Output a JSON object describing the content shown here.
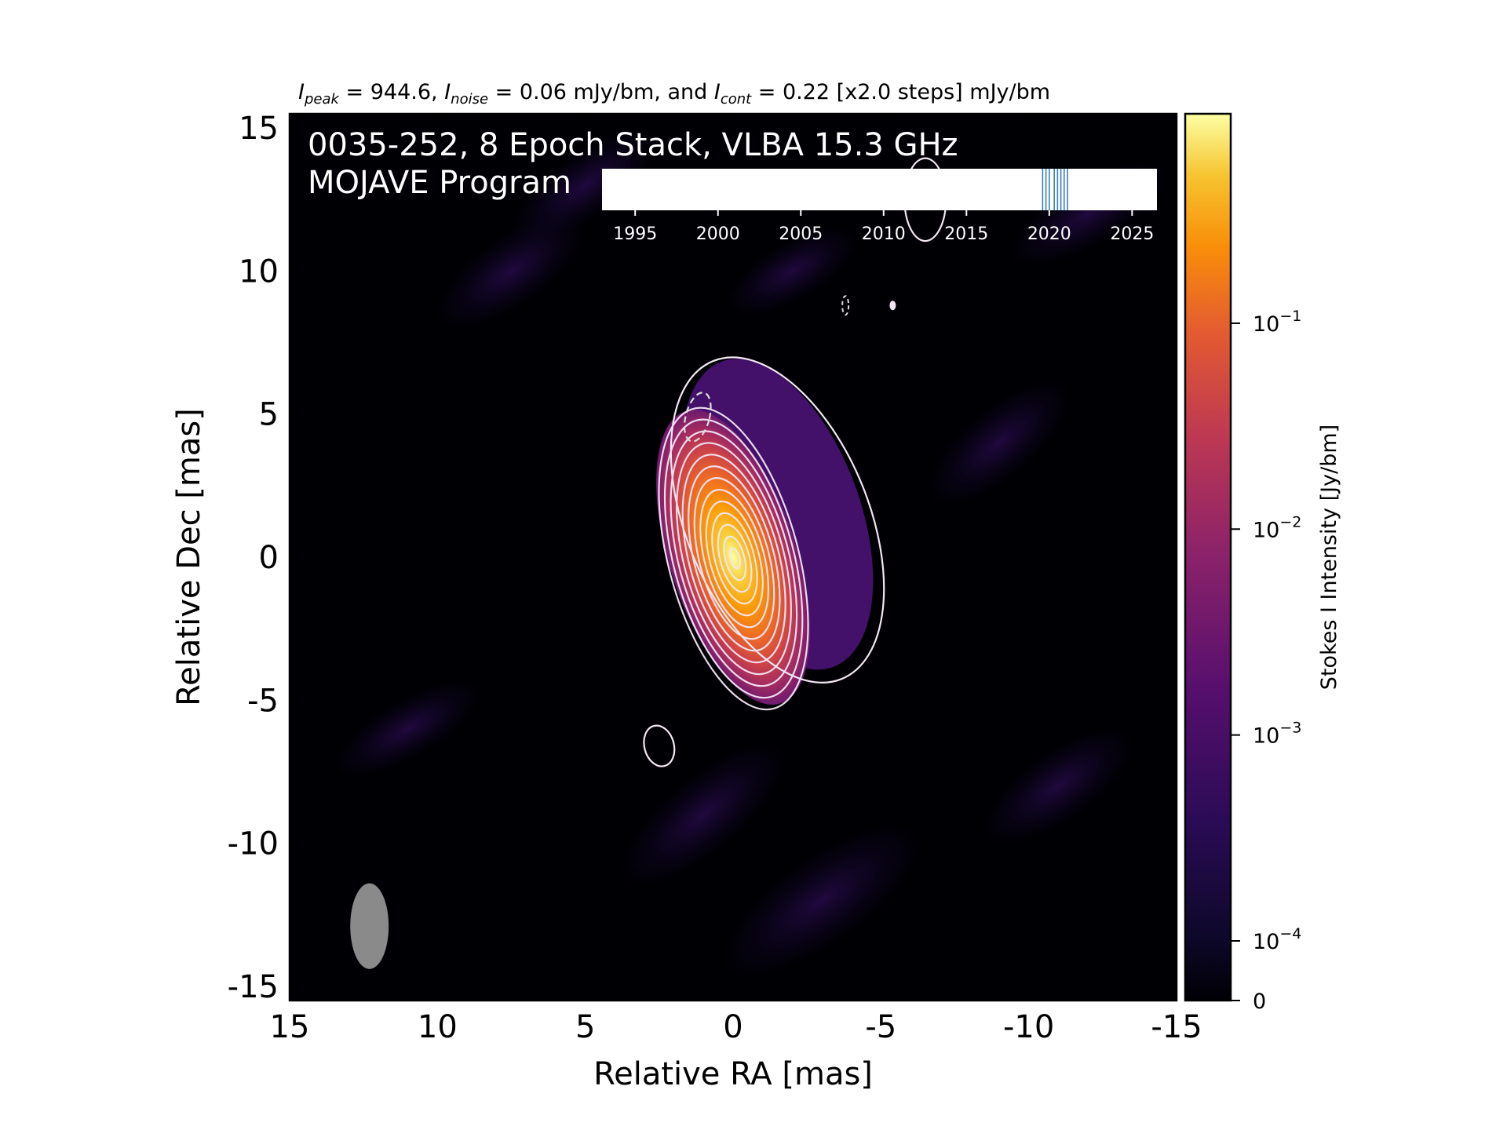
{
  "chart_data": {
    "type": "heatmap",
    "title_parts": {
      "peak_label": "I",
      "peak_sub": "peak",
      "peak_text": " = 944.6, ",
      "noise_label": "I",
      "noise_sub": "noise",
      "noise_text": " = 0.06 mJy/bm, and ",
      "cont_label": "I",
      "cont_sub": "cont",
      "cont_text": " = 0.22 [x2.0 steps] mJy/bm"
    },
    "overlay_line1": "0035-252, 8 Epoch Stack, VLBA 15.3 GHz",
    "overlay_line2": "MOJAVE Program",
    "xlabel": "Relative RA [mas]",
    "ylabel": "Relative Dec [mas]",
    "xlim": [
      15,
      -15
    ],
    "ylim": [
      -15.5,
      15.5
    ],
    "xticks": [
      15,
      10,
      5,
      0,
      -5,
      -10,
      -15
    ],
    "xtick_labels": [
      "15",
      "10",
      "5",
      "0",
      "-5",
      "-10",
      "-15"
    ],
    "yticks": [
      15,
      10,
      5,
      0,
      -5,
      -10,
      -15
    ],
    "ytick_labels": [
      "15",
      "10",
      "5",
      "0",
      "-5",
      "-10",
      "-15"
    ],
    "colormap": "inferno",
    "colorbar": {
      "label": "Stokes I Intensity [Jy/bm]",
      "scale": "log",
      "ticks": [
        {
          "value": 0,
          "base": "0",
          "exp": ""
        },
        {
          "value": 0.0001,
          "base": "10",
          "exp": "−4"
        },
        {
          "value": 0.001,
          "base": "10",
          "exp": "−3"
        },
        {
          "value": 0.01,
          "base": "10",
          "exp": "−2"
        },
        {
          "value": 0.1,
          "base": "10",
          "exp": "−1"
        }
      ]
    },
    "peak_position": {
      "ra": 0,
      "dec": 0
    },
    "peak_intensity_mJy_per_beam": 944.6,
    "noise_mJy_per_beam": 0.06,
    "lowest_contour_mJy_per_beam": 0.22,
    "contour_step_factor": 2.0,
    "contour_count": 13,
    "beam": {
      "ra": 12.3,
      "dec": -12.9,
      "major_mas": 2.9,
      "minor_mas": 1.3
    },
    "epoch_timeline": {
      "xlim": [
        1993,
        2026.5
      ],
      "ticks": [
        1995,
        2000,
        2005,
        2010,
        2015,
        2020,
        2025
      ],
      "tick_labels": [
        "1995",
        "2000",
        "2005",
        "2010",
        "2015",
        "2020",
        "2025"
      ],
      "epochs": [
        2019.6,
        2019.8,
        2020.0,
        2020.3,
        2020.5,
        2020.7,
        2020.9,
        2021.1
      ]
    },
    "colors": {
      "contour": "#f2e6f5",
      "negative_contour": "#dddddd",
      "epoch_line": "#3a7fc1",
      "beam": "#8a8a8a",
      "background": "#000004"
    }
  }
}
